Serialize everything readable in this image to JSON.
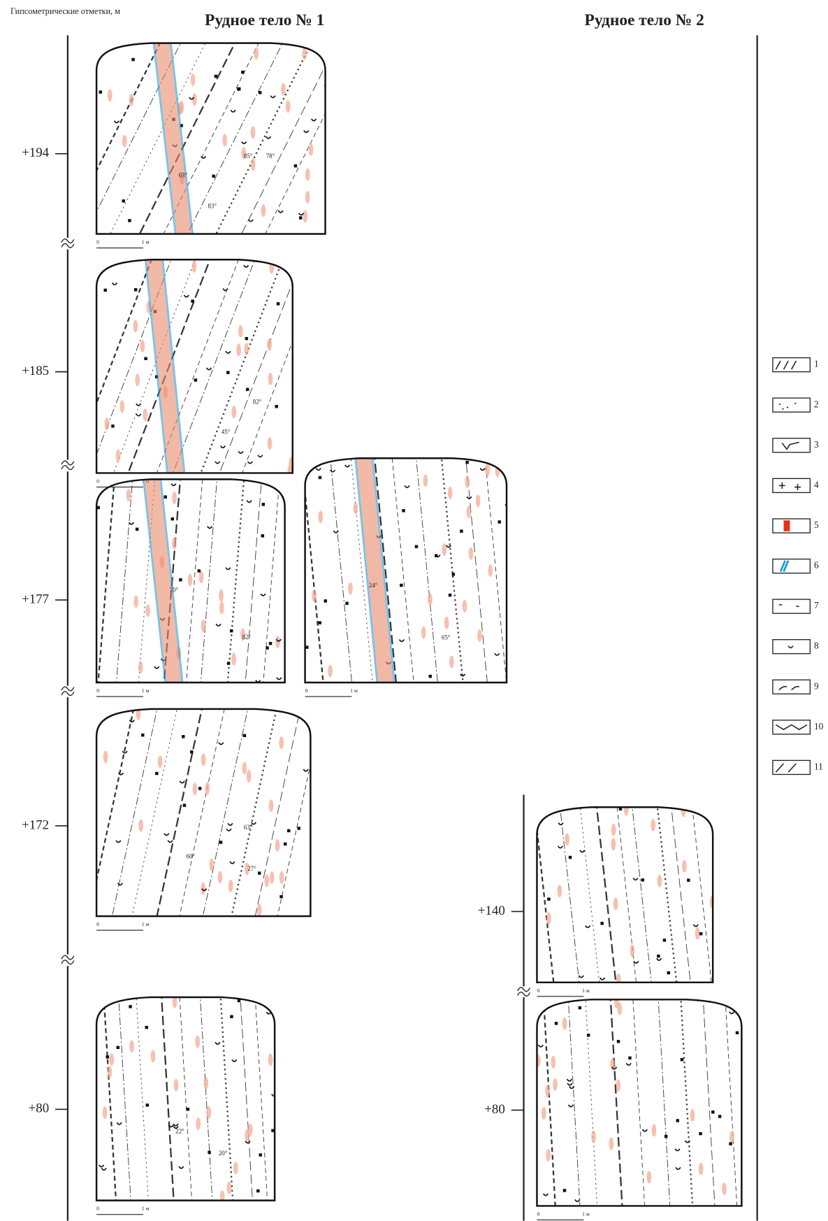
{
  "axis_title": "Гипсометрические отметки, м",
  "ore_bodies": [
    {
      "title": "Рудное тело № 1",
      "sections": [
        {
          "level": "+194",
          "frames": [
            {
              "dips": [
                "85°",
                "78°",
                "83°",
                "63°"
              ]
            }
          ]
        },
        {
          "level": "+185",
          "frames": [
            {
              "dips": [
                "82°",
                "45°"
              ]
            }
          ]
        },
        {
          "level": "+177",
          "frames": [
            {
              "dips": [
                "82°",
                "70°"
              ]
            },
            {
              "dips": [
                "24°",
                "65°"
              ]
            }
          ]
        },
        {
          "level": "+172",
          "frames": [
            {
              "dips": [
                "60°",
                "63°",
                "27°"
              ]
            }
          ]
        },
        {
          "level": "+80",
          "frames": [
            {
              "dips": [
                "22°",
                "20°"
              ]
            }
          ]
        }
      ]
    },
    {
      "title": "Рудное тело № 2",
      "sections": [
        {
          "level": "+140",
          "frames": [
            {
              "dips": []
            }
          ]
        },
        {
          "level": "+80",
          "frames": [
            {
              "dips": []
            }
          ]
        }
      ]
    }
  ],
  "scale": {
    "zero": "0",
    "unit": "1 м"
  },
  "legend": [
    "1",
    "2",
    "3",
    "4",
    "5",
    "6",
    "7",
    "8",
    "9",
    "10",
    "11"
  ]
}
